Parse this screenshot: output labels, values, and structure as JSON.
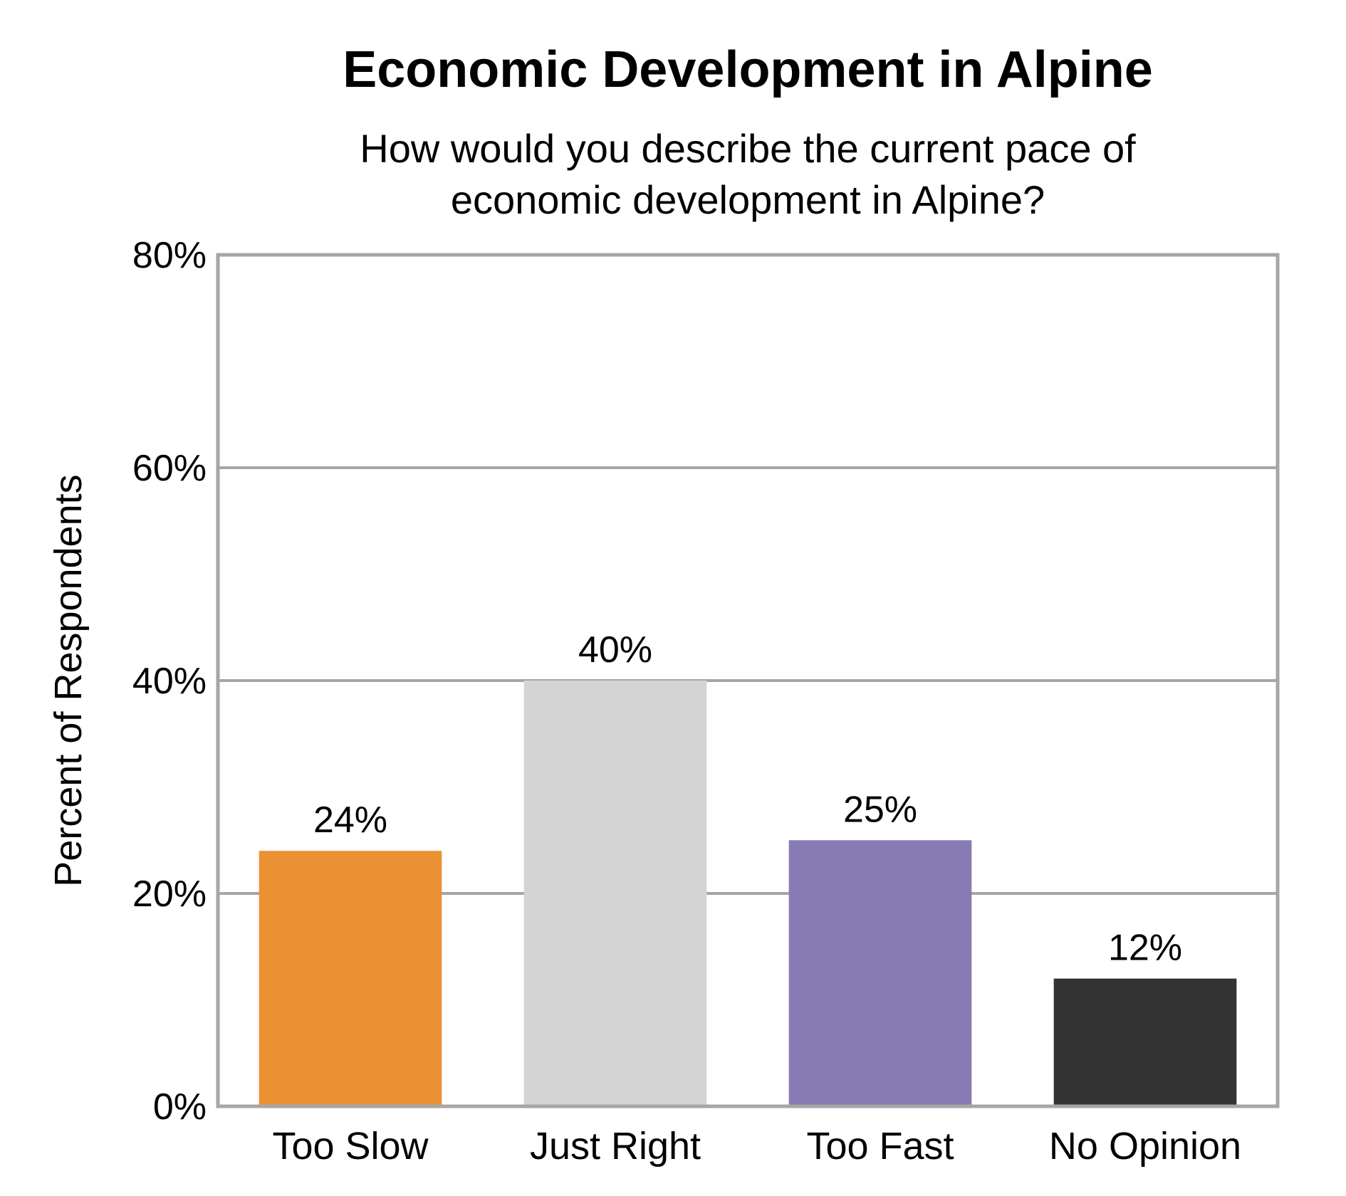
{
  "chart_data": {
    "type": "bar",
    "title": "Economic Development in Alpine",
    "subtitle": [
      "How would you describe the current pace of",
      "economic development in Alpine?"
    ],
    "xlabel": "",
    "ylabel": "Percent of Respondents",
    "ylim": [
      0,
      80
    ],
    "yticks": [
      0,
      20,
      40,
      60,
      80
    ],
    "ytick_labels": [
      "0%",
      "20%",
      "40%",
      "60%",
      "80%"
    ],
    "grid": true,
    "categories": [
      "Too Slow",
      "Just Right",
      "Too Fast",
      "No Opinion"
    ],
    "values": [
      24,
      40,
      25,
      12
    ],
    "value_labels": [
      "24%",
      "40%",
      "25%",
      "12%"
    ],
    "colors": [
      "#ea9234",
      "#d4d4d4",
      "#887bb5",
      "#333333"
    ],
    "frame_color": "#a6a6a6"
  }
}
